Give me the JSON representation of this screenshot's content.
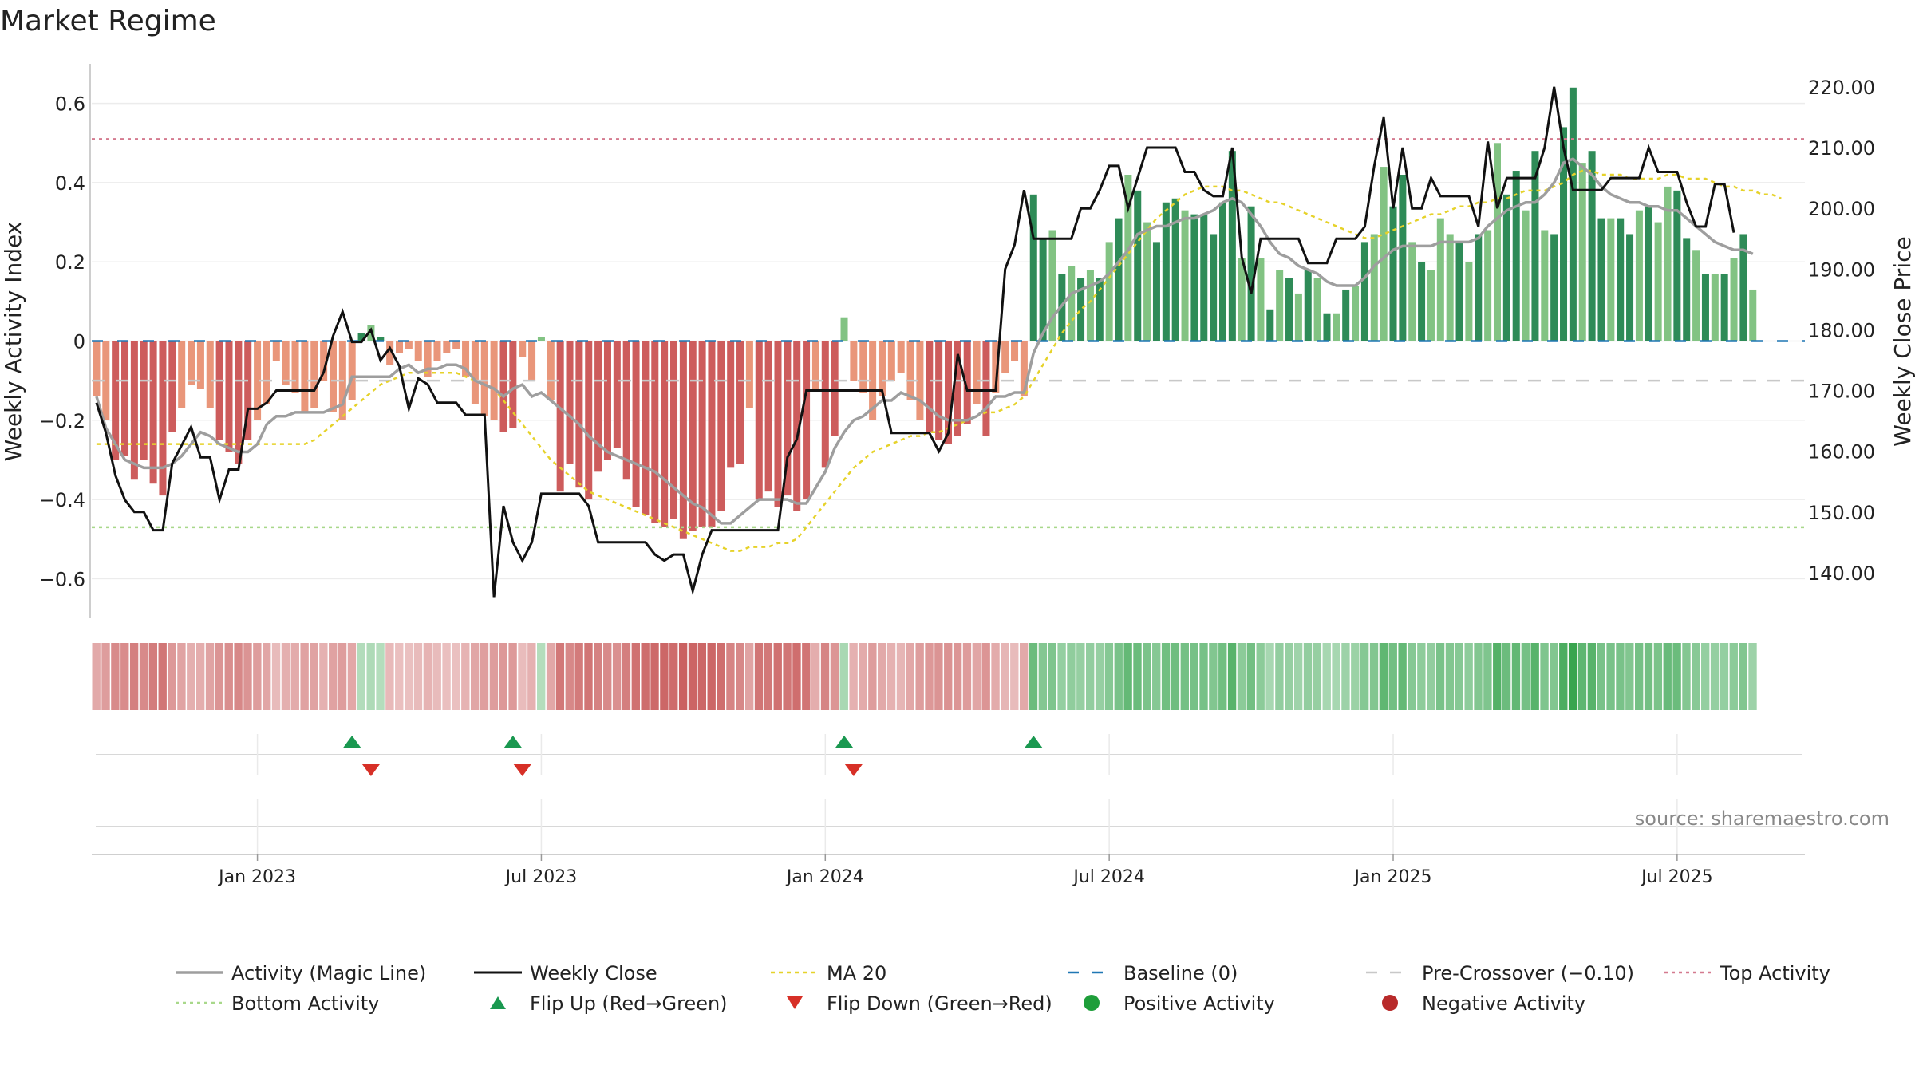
{
  "title": "Market Regime",
  "source": "source: sharemaestro.com",
  "colors": {
    "magic": "#9e9e9e",
    "close": "#111111",
    "ma": "#e6d22a",
    "baseline": "#1f77b4",
    "precross": "#c8c8c8",
    "top": "#d47a8f",
    "bottom": "#a8d88a",
    "pos_dark": "#2e8b57",
    "pos_light": "#82c383",
    "neg_dark": "#cd5c5c",
    "neg_light": "#e9967a",
    "flip_up": "#1a9850",
    "flip_down": "#d73027"
  },
  "chart_data": {
    "type": "bar",
    "title": "Market Regime",
    "ylabel_left": "Weekly Activity Index",
    "ylabel_right": "Weekly Close Price",
    "ylim_left": [
      -0.7,
      0.7
    ],
    "ylim_right": [
      132.5,
      223.8
    ],
    "yticks_left": [
      {
        "v": 0.6,
        "label": "0.6"
      },
      {
        "v": 0.4,
        "label": "0.4"
      },
      {
        "v": 0.2,
        "label": "0.2"
      },
      {
        "v": 0,
        "label": "0"
      },
      {
        "v": -0.2,
        "label": "−0.2"
      },
      {
        "v": -0.4,
        "label": "−0.4"
      },
      {
        "v": -0.6,
        "label": "−0.6"
      }
    ],
    "yticks_right": [
      {
        "v": 220,
        "label": "220.00"
      },
      {
        "v": 210,
        "label": "210.00"
      },
      {
        "v": 200,
        "label": "200.00"
      },
      {
        "v": 190,
        "label": "190.00"
      },
      {
        "v": 180,
        "label": "180.00"
      },
      {
        "v": 170,
        "label": "170.00"
      },
      {
        "v": 160,
        "label": "160.00"
      },
      {
        "v": 150,
        "label": "150.00"
      },
      {
        "v": 140,
        "label": "140.00"
      }
    ],
    "x_ticks": [
      {
        "week": 17,
        "label": "Jan 2023"
      },
      {
        "week": 47,
        "label": "Jul 2023"
      },
      {
        "week": 77,
        "label": "Jan 2024"
      },
      {
        "week": 107,
        "label": "Jul 2024"
      },
      {
        "week": 137,
        "label": "Jan 2025"
      },
      {
        "week": 167,
        "label": "Jul 2025"
      }
    ],
    "n_weeks": 181,
    "activity": [
      -0.14,
      -0.2,
      -0.3,
      -0.29,
      -0.35,
      -0.3,
      -0.36,
      -0.39,
      -0.23,
      -0.17,
      -0.11,
      -0.12,
      -0.17,
      -0.25,
      -0.28,
      -0.31,
      -0.25,
      -0.2,
      -0.16,
      -0.05,
      -0.11,
      -0.13,
      -0.18,
      -0.17,
      -0.1,
      -0.18,
      -0.2,
      -0.15,
      0.02,
      0.04,
      0.01,
      -0.06,
      -0.03,
      -0.02,
      -0.05,
      -0.09,
      -0.05,
      -0.03,
      -0.02,
      -0.09,
      -0.16,
      -0.19,
      -0.2,
      -0.23,
      -0.22,
      -0.04,
      -0.1,
      0.01,
      -0.15,
      -0.38,
      -0.31,
      -0.37,
      -0.4,
      -0.33,
      -0.3,
      -0.27,
      -0.35,
      -0.42,
      -0.44,
      -0.46,
      -0.47,
      -0.45,
      -0.5,
      -0.48,
      -0.47,
      -0.47,
      -0.43,
      -0.32,
      -0.31,
      -0.17,
      -0.4,
      -0.38,
      -0.42,
      -0.39,
      -0.43,
      -0.4,
      -0.12,
      -0.32,
      -0.24,
      0.06,
      -0.1,
      -0.13,
      -0.2,
      -0.14,
      -0.1,
      -0.08,
      -0.15,
      -0.2,
      -0.23,
      -0.25,
      -0.26,
      -0.24,
      -0.21,
      -0.16,
      -0.24,
      -0.13,
      -0.08,
      -0.05,
      -0.14,
      0.37,
      0.26,
      0.28,
      0.17,
      0.19,
      0.16,
      0.18,
      0.16,
      0.25,
      0.31,
      0.42,
      0.38,
      0.3,
      0.25,
      0.35,
      0.36,
      0.33,
      0.32,
      0.32,
      0.27,
      0.35,
      0.48,
      0.21,
      0.34,
      0.21,
      0.08,
      0.18,
      0.16,
      0.12,
      0.18,
      0.16,
      0.07,
      0.07,
      0.13,
      0.14,
      0.25,
      0.27,
      0.44,
      0.34,
      0.42,
      0.25,
      0.2,
      0.18,
      0.31,
      0.27,
      0.25,
      0.2,
      0.27,
      0.28,
      0.5,
      0.37,
      0.43,
      0.33,
      0.48,
      0.28,
      0.27,
      0.54,
      0.64,
      0.45,
      0.48,
      0.31,
      0.31,
      0.31,
      0.27,
      0.33,
      0.34,
      0.3,
      0.39,
      0.38,
      0.26,
      0.23,
      0.17,
      0.17,
      0.17,
      0.21,
      0.27,
      0.13
    ],
    "magic_line": [
      -0.14,
      -0.22,
      -0.26,
      -0.3,
      -0.31,
      -0.32,
      -0.32,
      -0.32,
      -0.31,
      -0.29,
      -0.26,
      -0.23,
      -0.24,
      -0.26,
      -0.27,
      -0.28,
      -0.28,
      -0.26,
      -0.21,
      -0.19,
      -0.19,
      -0.18,
      -0.18,
      -0.18,
      -0.18,
      -0.17,
      -0.16,
      -0.09,
      -0.09,
      -0.09,
      -0.09,
      -0.09,
      -0.07,
      -0.06,
      -0.08,
      -0.07,
      -0.07,
      -0.06,
      -0.06,
      -0.07,
      -0.1,
      -0.11,
      -0.12,
      -0.14,
      -0.12,
      -0.11,
      -0.14,
      -0.13,
      -0.15,
      -0.17,
      -0.19,
      -0.21,
      -0.24,
      -0.26,
      -0.28,
      -0.29,
      -0.3,
      -0.31,
      -0.32,
      -0.33,
      -0.35,
      -0.37,
      -0.39,
      -0.41,
      -0.42,
      -0.44,
      -0.46,
      -0.46,
      -0.44,
      -0.42,
      -0.4,
      -0.4,
      -0.4,
      -0.4,
      -0.41,
      -0.41,
      -0.37,
      -0.33,
      -0.27,
      -0.23,
      -0.2,
      -0.19,
      -0.17,
      -0.15,
      -0.15,
      -0.13,
      -0.14,
      -0.15,
      -0.17,
      -0.19,
      -0.2,
      -0.2,
      -0.2,
      -0.19,
      -0.17,
      -0.14,
      -0.14,
      -0.13,
      -0.13,
      -0.03,
      0.02,
      0.06,
      0.09,
      0.12,
      0.13,
      0.14,
      0.15,
      0.17,
      0.2,
      0.23,
      0.27,
      0.28,
      0.29,
      0.29,
      0.3,
      0.31,
      0.31,
      0.32,
      0.33,
      0.35,
      0.36,
      0.35,
      0.32,
      0.29,
      0.25,
      0.22,
      0.21,
      0.19,
      0.18,
      0.17,
      0.15,
      0.14,
      0.14,
      0.14,
      0.16,
      0.19,
      0.21,
      0.23,
      0.24,
      0.24,
      0.24,
      0.24,
      0.25,
      0.25,
      0.25,
      0.25,
      0.26,
      0.29,
      0.31,
      0.33,
      0.34,
      0.35,
      0.35,
      0.37,
      0.4,
      0.45,
      0.46,
      0.44,
      0.42,
      0.39,
      0.37,
      0.36,
      0.35,
      0.35,
      0.34,
      0.34,
      0.33,
      0.33,
      0.31,
      0.29,
      0.27,
      0.25,
      0.24,
      0.23,
      0.23,
      0.22
    ],
    "weekly_close": [
      168,
      163,
      156,
      152,
      150,
      150,
      147,
      147,
      158,
      161,
      164,
      159,
      159,
      152,
      157,
      157,
      167,
      167,
      168,
      170,
      170,
      170,
      170,
      170,
      173,
      179,
      183,
      178,
      178,
      180,
      175,
      177,
      174,
      167,
      172,
      171,
      168,
      168,
      168,
      166,
      166,
      166,
      136,
      151,
      145,
      142,
      145,
      153,
      153,
      153,
      153,
      153,
      151,
      145,
      145,
      145,
      145,
      145,
      145,
      143,
      142,
      143,
      143,
      137,
      143,
      147,
      147,
      147,
      147,
      147,
      147,
      147,
      147,
      159,
      162,
      170,
      170,
      170,
      170,
      170,
      170,
      170,
      170,
      170,
      163,
      163,
      163,
      163,
      163,
      160,
      163,
      176,
      170,
      170,
      170,
      170,
      190,
      194,
      203,
      195,
      195,
      195,
      195,
      195,
      200,
      200,
      203,
      207,
      207,
      200,
      205,
      210,
      210,
      210,
      210,
      206,
      206,
      203,
      202,
      202,
      210,
      192,
      186,
      195,
      195,
      195,
      195,
      195,
      191,
      191,
      191,
      195,
      195,
      195,
      197,
      207,
      215,
      200,
      210,
      200,
      200,
      205,
      202,
      202,
      202,
      202,
      197,
      211,
      200,
      205,
      205,
      205,
      205,
      210,
      220,
      210,
      203,
      203,
      203,
      203,
      205,
      205,
      205,
      205,
      210,
      206,
      206,
      206,
      201,
      197,
      197,
      204,
      204,
      196
    ],
    "ma20": [
      -0.26,
      -0.26,
      -0.26,
      -0.26,
      -0.26,
      -0.26,
      -0.26,
      -0.26,
      -0.26,
      -0.26,
      -0.26,
      -0.26,
      -0.26,
      -0.26,
      -0.26,
      -0.26,
      -0.26,
      -0.26,
      -0.26,
      -0.26,
      -0.26,
      -0.26,
      -0.26,
      -0.25,
      -0.23,
      -0.21,
      -0.19,
      -0.17,
      -0.15,
      -0.13,
      -0.11,
      -0.1,
      -0.09,
      -0.08,
      -0.08,
      -0.08,
      -0.08,
      -0.08,
      -0.08,
      -0.09,
      -0.1,
      -0.11,
      -0.12,
      -0.15,
      -0.18,
      -0.21,
      -0.24,
      -0.27,
      -0.3,
      -0.32,
      -0.34,
      -0.36,
      -0.38,
      -0.39,
      -0.4,
      -0.41,
      -0.42,
      -0.43,
      -0.44,
      -0.45,
      -0.46,
      -0.47,
      -0.48,
      -0.49,
      -0.5,
      -0.51,
      -0.52,
      -0.53,
      -0.53,
      -0.52,
      -0.52,
      -0.52,
      -0.51,
      -0.51,
      -0.5,
      -0.47,
      -0.44,
      -0.41,
      -0.38,
      -0.35,
      -0.32,
      -0.3,
      -0.28,
      -0.27,
      -0.26,
      -0.25,
      -0.24,
      -0.24,
      -0.23,
      -0.23,
      -0.22,
      -0.21,
      -0.2,
      -0.19,
      -0.18,
      -0.18,
      -0.17,
      -0.16,
      -0.14,
      -0.1,
      -0.06,
      -0.02,
      0.02,
      0.05,
      0.08,
      0.1,
      0.13,
      0.16,
      0.19,
      0.22,
      0.25,
      0.28,
      0.31,
      0.33,
      0.35,
      0.37,
      0.38,
      0.39,
      0.39,
      0.39,
      0.38,
      0.38,
      0.37,
      0.36,
      0.35,
      0.35,
      0.34,
      0.33,
      0.32,
      0.31,
      0.3,
      0.29,
      0.28,
      0.27,
      0.26,
      0.26,
      0.27,
      0.28,
      0.29,
      0.3,
      0.31,
      0.32,
      0.32,
      0.33,
      0.34,
      0.34,
      0.35,
      0.35,
      0.36,
      0.36,
      0.37,
      0.38,
      0.38,
      0.38,
      0.39,
      0.4,
      0.42,
      0.43,
      0.43,
      0.42,
      0.42,
      0.42,
      0.41,
      0.41,
      0.41,
      0.41,
      0.42,
      0.42,
      0.41,
      0.41,
      0.41,
      0.4,
      0.39,
      0.39,
      0.38,
      0.38,
      0.37,
      0.37,
      0.36
    ],
    "baseline": 0,
    "pre_crossover": -0.1,
    "top_activity": 0.51,
    "bottom_activity": -0.47,
    "flips_up": [
      27,
      44,
      79,
      99
    ],
    "flips_down": [
      29,
      45,
      80
    ],
    "legend": [
      {
        "label": "Activity (Magic Line)",
        "kind": "solid-gray"
      },
      {
        "label": "Weekly Close",
        "kind": "solid-black"
      },
      {
        "label": "MA 20",
        "kind": "dot-yellow"
      },
      {
        "label": "Baseline (0)",
        "kind": "dash-blue"
      },
      {
        "label": "Pre-Crossover (−0.10)",
        "kind": "dash-gray"
      },
      {
        "label": "Top Activity",
        "kind": "dot-pink"
      },
      {
        "label": "Bottom Activity",
        "kind": "dot-green"
      },
      {
        "label": "Flip Up (Red→Green)",
        "kind": "tri-up"
      },
      {
        "label": "Flip Down (Green→Red)",
        "kind": "tri-down"
      },
      {
        "label": "Positive Activity",
        "kind": "dot-pos"
      },
      {
        "label": "Negative Activity",
        "kind": "dot-neg"
      }
    ]
  }
}
